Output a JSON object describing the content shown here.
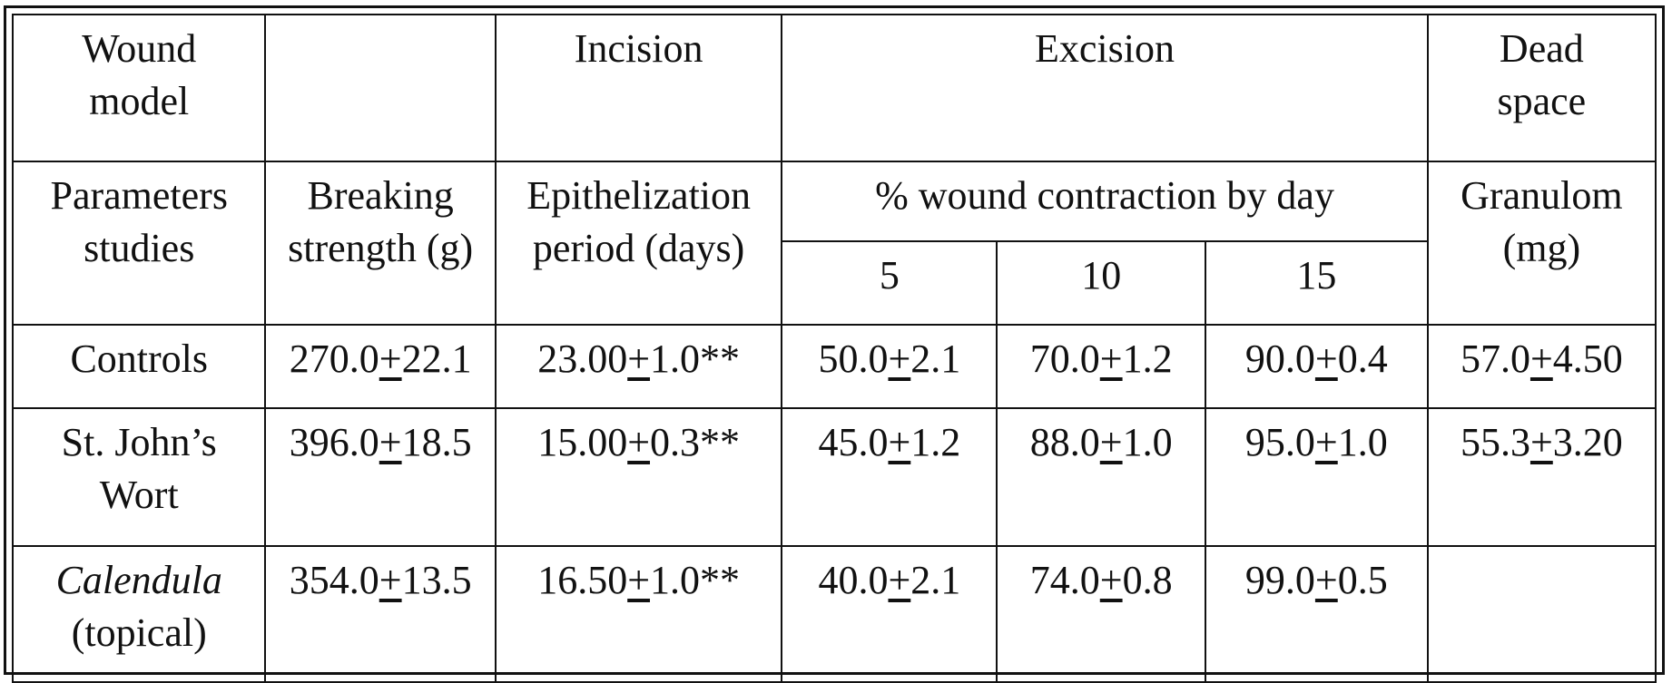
{
  "header": {
    "wound_model_l1": "Wound",
    "wound_model_l2": "model",
    "incision": "Incision",
    "excision": "Excision",
    "dead_space_l1": "Dead",
    "dead_space_l2": "space",
    "parameters_l1": "Parameters",
    "parameters_l2": "studies",
    "breaking_l1": "Breaking",
    "breaking_l2": "strength (g)",
    "epith_l1": "Epithelization",
    "epith_l2": "period (days)",
    "contraction": "% wound contraction by day",
    "granulom_l1": "Granulom",
    "granulom_l2": "(mg)",
    "day5": "5",
    "day10": "10",
    "day15": "15"
  },
  "rows": [
    {
      "name_l1": "Controls",
      "name_l2": "",
      "breaking": {
        "m": "270.0",
        "pm": "+",
        "sd": "22.1"
      },
      "epith": {
        "m": "23.00",
        "pm": "+",
        "sd": "1.0**"
      },
      "c5": {
        "m": "50.0",
        "pm": "+",
        "sd": "2.1"
      },
      "c10": {
        "m": "70.0",
        "pm": "+",
        "sd": "1.2"
      },
      "c15": {
        "m": "90.0",
        "pm": "+",
        "sd": "0.4"
      },
      "granulom": {
        "m": "57.0",
        "pm": "+",
        "sd": "4.50"
      }
    },
    {
      "name_l1": "St. John’s",
      "name_l2": "Wort",
      "breaking": {
        "m": "396.0",
        "pm": "+",
        "sd": "18.5"
      },
      "epith": {
        "m": "15.00",
        "pm": "+",
        "sd": "0.3**"
      },
      "c5": {
        "m": "45.0",
        "pm": "+",
        "sd": "1.2"
      },
      "c10": {
        "m": "88.0",
        "pm": "+",
        "sd": "1.0"
      },
      "c15": {
        "m": "95.0",
        "pm": "+",
        "sd": "1.0"
      },
      "granulom": {
        "m": "55.3",
        "pm": "+",
        "sd": "3.20"
      }
    },
    {
      "name_l1": "Calendula",
      "name_l2": "(topical)",
      "breaking": {
        "m": "354.0",
        "pm": "+",
        "sd": "13.5"
      },
      "epith": {
        "m": "16.50",
        "pm": "+",
        "sd": "1.0**"
      },
      "c5": {
        "m": "40.0",
        "pm": "+",
        "sd": "2.1"
      },
      "c10": {
        "m": "74.0",
        "pm": "+",
        "sd": "0.8"
      },
      "c15": {
        "m": "99.0",
        "pm": "+",
        "sd": "0.5"
      },
      "granulom": {
        "m": "",
        "pm": "",
        "sd": ""
      }
    }
  ]
}
